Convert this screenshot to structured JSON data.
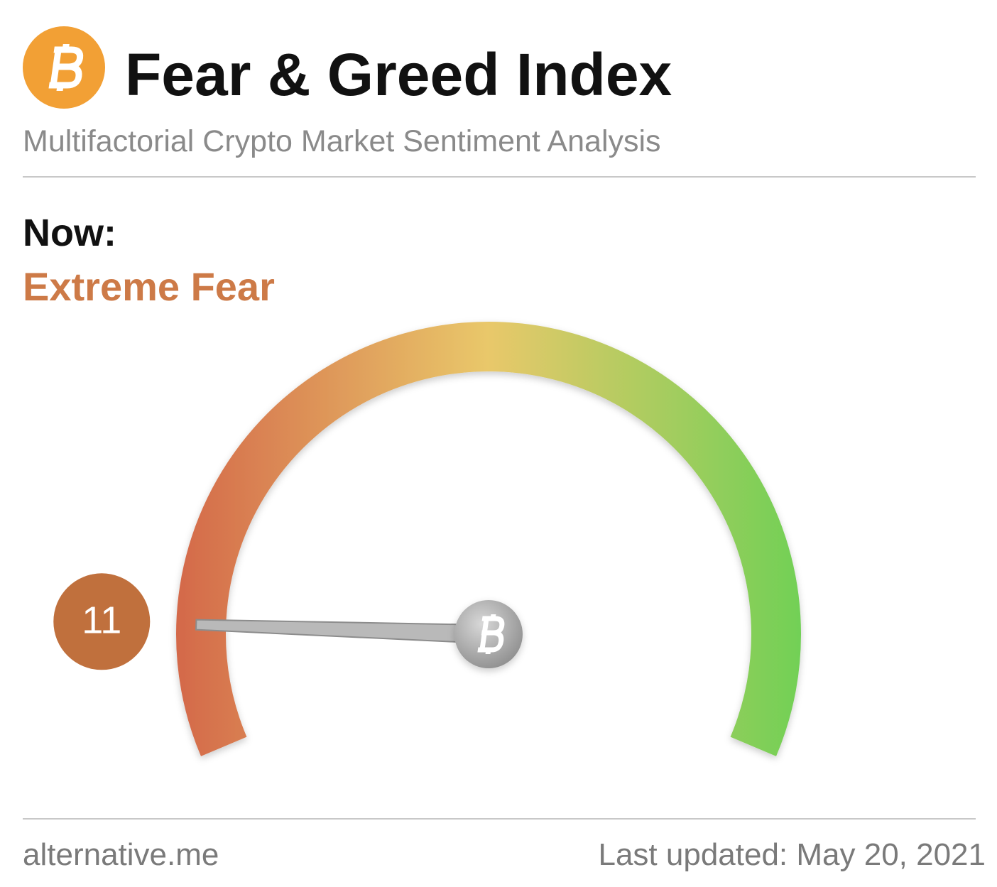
{
  "chart_data": {
    "type": "gauge",
    "title": "Fear & Greed Index",
    "subtitle": "Multifactorial Crypto Market Sentiment Analysis",
    "now_label": "Now:",
    "classification": "Extreme Fear",
    "classification_color": "#cd7a47",
    "value": 11,
    "lim": [
      0,
      100
    ],
    "colors": [
      "#d4694a",
      "#e9c86a",
      "#72d056"
    ],
    "source": "alternative.me",
    "updated": "Last updated: May 20, 2021"
  }
}
